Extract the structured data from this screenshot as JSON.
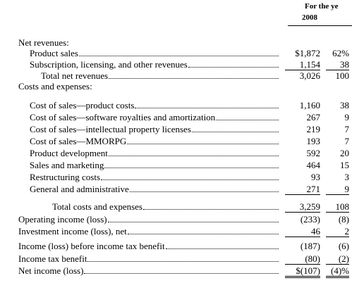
{
  "header": {
    "title": "For the ye",
    "year": "2008"
  },
  "rows": [
    {
      "label": "Net revenues:"
    },
    {
      "label": "Product sales",
      "amount": "$1,872",
      "percent": "62%"
    },
    {
      "label": "Subscription, licensing, and other revenues",
      "amount": "1,154",
      "percent": "38"
    },
    {
      "label": "Total net revenues",
      "amount": "3,026",
      "percent": "100"
    },
    {
      "label": "Costs and expenses:"
    },
    {
      "label": "Cost of sales—product costs",
      "amount": "1,160",
      "percent": "38"
    },
    {
      "label": "Cost of sales—software royalties and amortization",
      "amount": "267",
      "percent": "9"
    },
    {
      "label": "Cost of sales—intellectual property licenses",
      "amount": "219",
      "percent": "7"
    },
    {
      "label": "Cost of sales—MMORPG",
      "amount": "193",
      "percent": "7"
    },
    {
      "label": "Product development",
      "amount": "592",
      "percent": "20"
    },
    {
      "label": "Sales and marketing",
      "amount": "464",
      "percent": "15"
    },
    {
      "label": "Restructuring costs",
      "amount": "93",
      "percent": "3"
    },
    {
      "label": "General and administrative",
      "amount": "271",
      "percent": "9"
    },
    {
      "label": "Total costs and expenses",
      "amount": "3,259",
      "percent": "108"
    },
    {
      "label": "Operating income (loss)",
      "amount": "(233)",
      "percent": "(8)"
    },
    {
      "label": "Investment income (loss), net",
      "amount": "46",
      "percent": "2"
    },
    {
      "label": "Income (loss) before income tax benefit",
      "amount": "(187)",
      "percent": "(6)"
    },
    {
      "label": "Income tax benefit",
      "amount": "(80)",
      "percent": "(2)"
    },
    {
      "label": "Net income (loss)",
      "amount": "$(107)",
      "percent": "(4)%"
    }
  ]
}
